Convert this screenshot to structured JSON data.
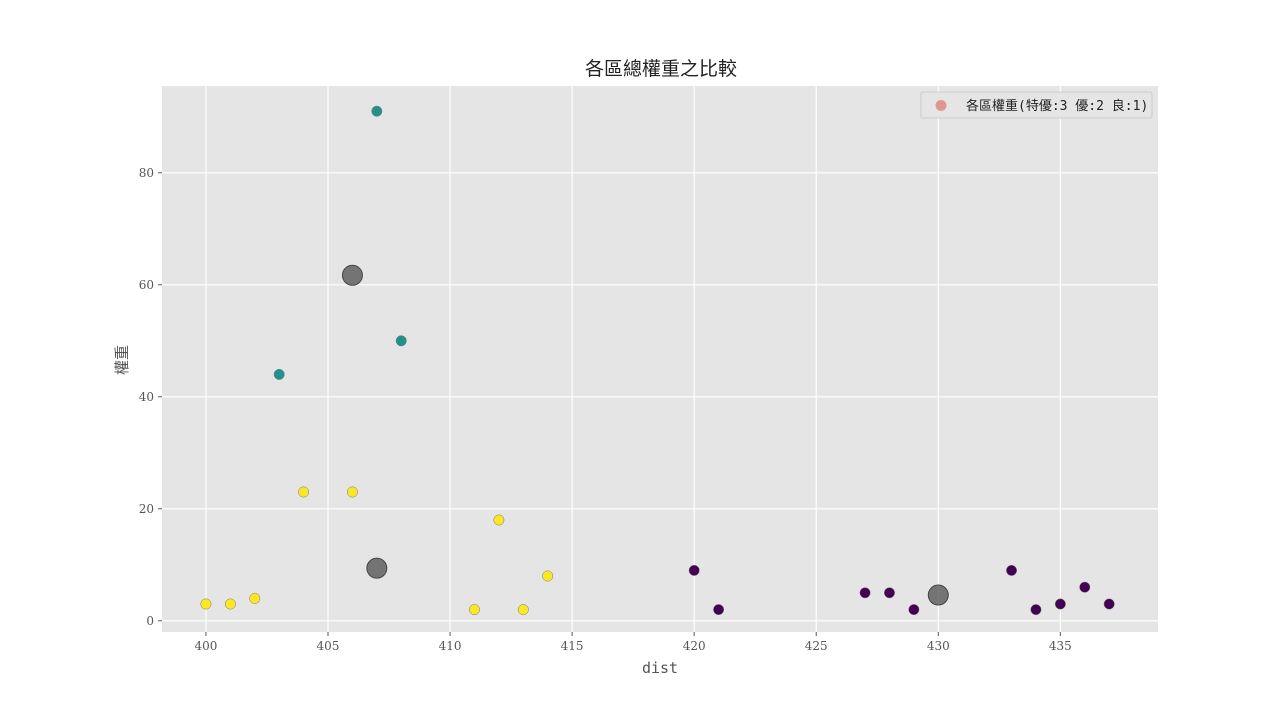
{
  "chart_data": {
    "type": "scatter",
    "title": "各區總權重之比較",
    "xlabel": "dist",
    "ylabel": "權重",
    "xlim": [
      398.2,
      439.0
    ],
    "ylim": [
      -2.0,
      95.5
    ],
    "xticks": [
      400,
      405,
      410,
      415,
      420,
      425,
      430,
      435
    ],
    "yticks": [
      0,
      20,
      40,
      60,
      80
    ],
    "grid": true,
    "legend": {
      "position": "top-right",
      "label": "各區權重(特優:3 優:2 良:1)",
      "color": "#e08a7f"
    },
    "colors": {
      "high": "#21918c",
      "mid": "#fde725",
      "low": "#440154",
      "centroid": "#555555",
      "background": "#e5e5e5",
      "grid": "#ffffff"
    },
    "series": [
      {
        "group": "high",
        "points": [
          {
            "x": 403,
            "y": 44
          },
          {
            "x": 407,
            "y": 91
          },
          {
            "x": 408,
            "y": 50
          }
        ]
      },
      {
        "group": "mid",
        "points": [
          {
            "x": 400,
            "y": 3
          },
          {
            "x": 401,
            "y": 3
          },
          {
            "x": 402,
            "y": 4
          },
          {
            "x": 404,
            "y": 23
          },
          {
            "x": 406,
            "y": 23
          },
          {
            "x": 411,
            "y": 2
          },
          {
            "x": 412,
            "y": 18
          },
          {
            "x": 413,
            "y": 2
          },
          {
            "x": 414,
            "y": 8
          }
        ]
      },
      {
        "group": "low",
        "points": [
          {
            "x": 420,
            "y": 9
          },
          {
            "x": 421,
            "y": 2
          },
          {
            "x": 427,
            "y": 5
          },
          {
            "x": 428,
            "y": 5
          },
          {
            "x": 429,
            "y": 2
          },
          {
            "x": 433,
            "y": 9
          },
          {
            "x": 434,
            "y": 2
          },
          {
            "x": 435,
            "y": 3
          },
          {
            "x": 436,
            "y": 6
          },
          {
            "x": 437,
            "y": 3
          }
        ]
      },
      {
        "group": "centroid",
        "points": [
          {
            "x": 406,
            "y": 61.7
          },
          {
            "x": 407,
            "y": 9.4
          },
          {
            "x": 430,
            "y": 4.6
          }
        ]
      }
    ]
  }
}
